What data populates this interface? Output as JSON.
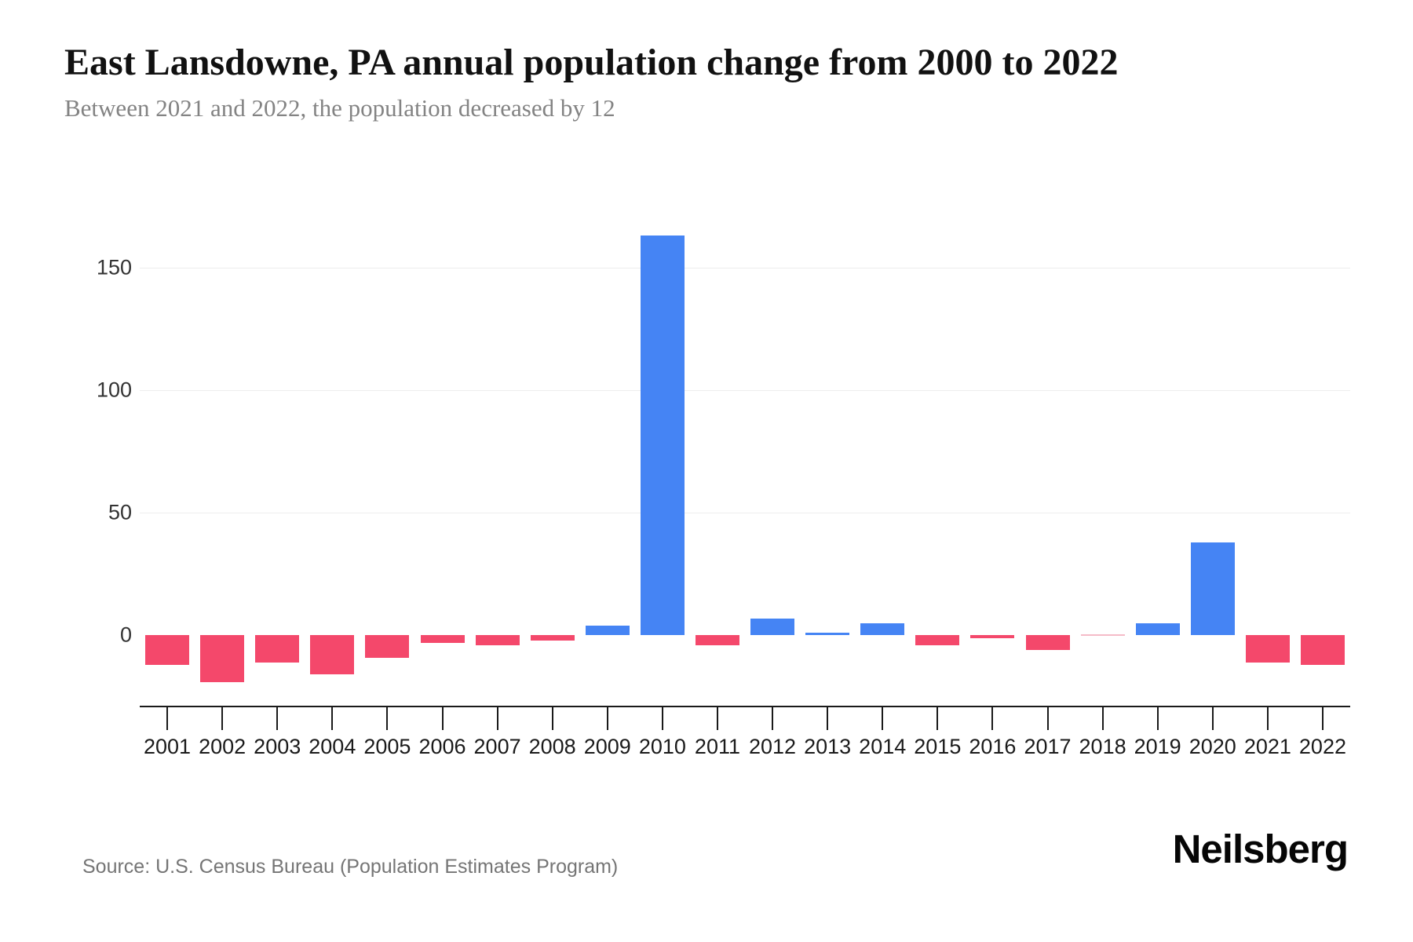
{
  "header": {
    "title": "East Lansdowne, PA annual population change from 2000 to 2022",
    "subtitle": "Between 2021 and 2022, the population decreased by 12"
  },
  "footer": {
    "source": "Source: U.S. Census Bureau (Population Estimates Program)",
    "brand": "Neilsberg"
  },
  "chart_data": {
    "type": "bar",
    "title": "East Lansdowne, PA annual population change from 2000 to 2022",
    "subtitle": "Between 2021 and 2022, the population decreased by 12",
    "series_name": "Annual population change",
    "categories": [
      "2001",
      "2002",
      "2003",
      "2004",
      "2005",
      "2006",
      "2007",
      "2008",
      "2009",
      "2010",
      "2011",
      "2012",
      "2013",
      "2014",
      "2015",
      "2016",
      "2017",
      "2018",
      "2019",
      "2020",
      "2021",
      "2022"
    ],
    "values": [
      -12,
      -19,
      -11,
      -16,
      -9,
      -3,
      -4,
      -2,
      4,
      163,
      -4,
      7,
      1,
      5,
      -4,
      -1,
      -6,
      0,
      5,
      38,
      -11,
      -12
    ],
    "xlabel": "",
    "ylabel": "",
    "yticks": [
      0,
      50,
      100,
      150
    ],
    "ylim": [
      -29,
      179
    ],
    "grid": "horizontal-light",
    "legend": "none",
    "colors": {
      "increase": "#4584F4",
      "decrease": "#F4486B",
      "zero": "#F5BBC8",
      "gridline": "#EDEDED",
      "axis": "#1A1A1A"
    }
  }
}
